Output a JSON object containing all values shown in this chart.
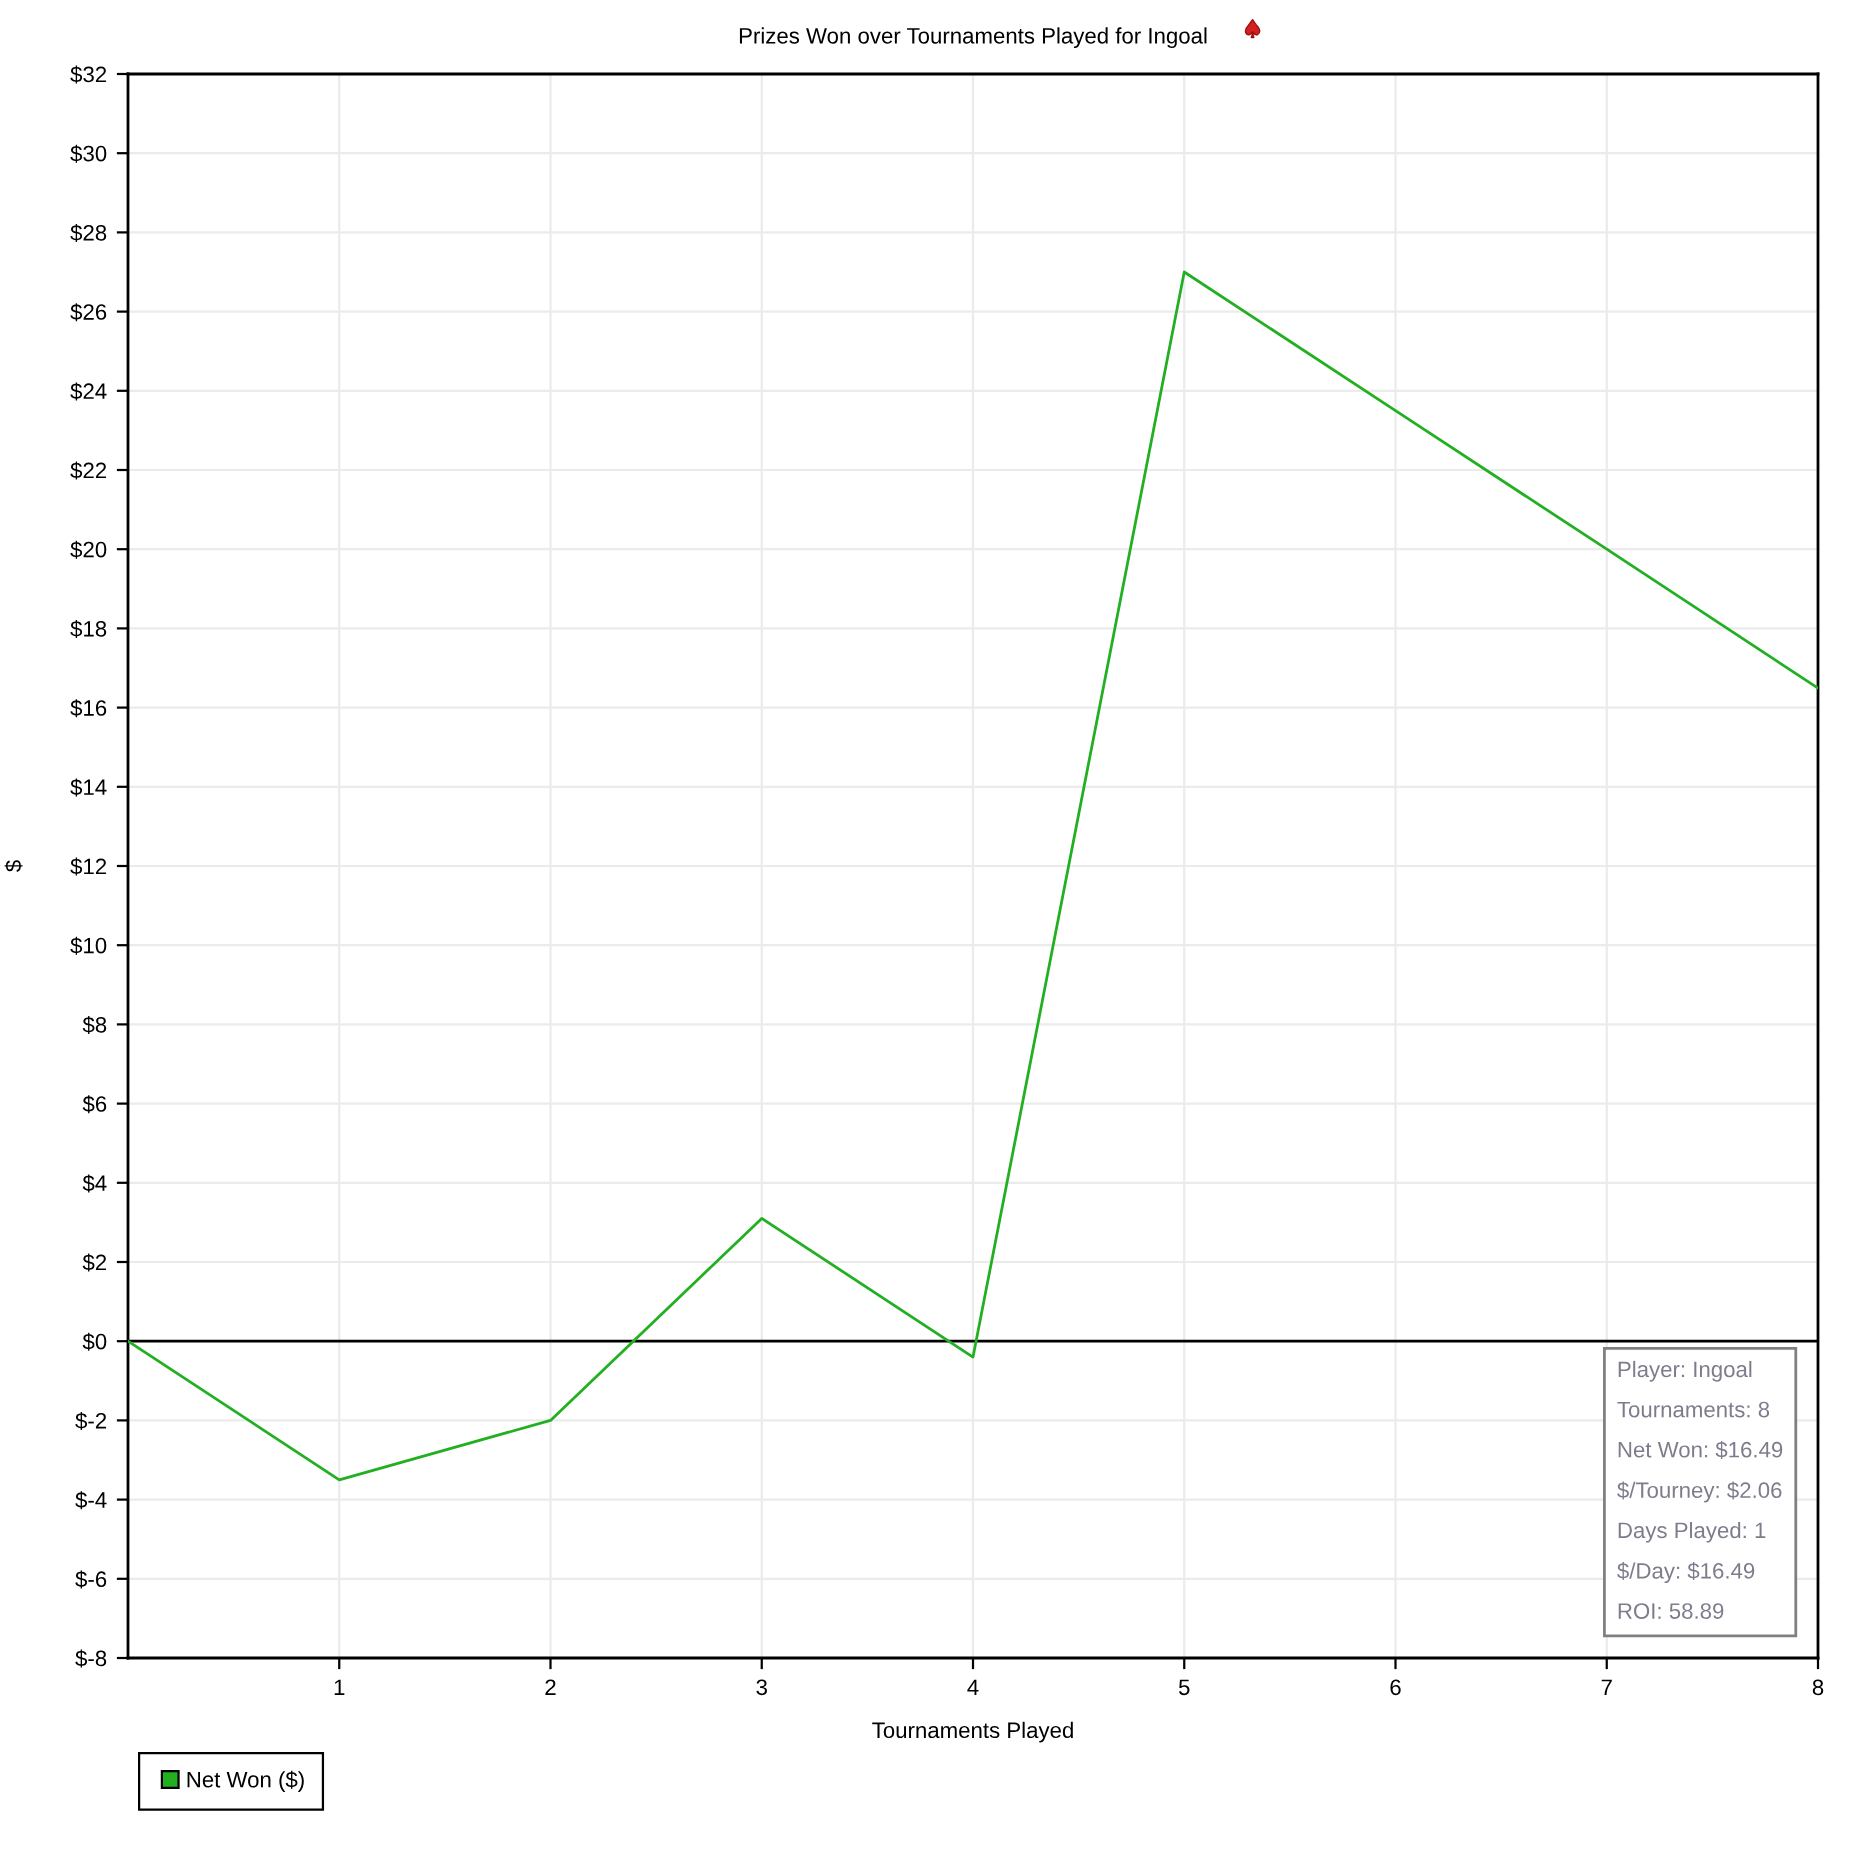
{
  "chart_data": {
    "type": "line",
    "title": "Prizes Won over Tournaments Played for Ingoal",
    "xlabel": "Tournaments Played",
    "ylabel": "$",
    "x": [
      0,
      1,
      2,
      3,
      4,
      5,
      6,
      7,
      8
    ],
    "series": [
      {
        "name": "Net Won ($)",
        "color": "#22b022",
        "values": [
          0,
          -3.5,
          -2.0,
          3.1,
          -0.4,
          27.0,
          23.5,
          20.0,
          16.49
        ]
      }
    ],
    "xlim": [
      0,
      8
    ],
    "xticks": [
      1,
      2,
      3,
      4,
      5,
      6,
      7,
      8
    ],
    "ylim": [
      -8,
      32
    ],
    "yticks": [
      {
        "value": -8,
        "label": "$-8"
      },
      {
        "value": -6,
        "label": "$-6"
      },
      {
        "value": -4,
        "label": "$-4"
      },
      {
        "value": -2,
        "label": "$-2"
      },
      {
        "value": 0,
        "label": "$0"
      },
      {
        "value": 2,
        "label": "$2"
      },
      {
        "value": 4,
        "label": "$4"
      },
      {
        "value": 6,
        "label": "$6"
      },
      {
        "value": 8,
        "label": "$8"
      },
      {
        "value": 10,
        "label": "$10"
      },
      {
        "value": 12,
        "label": "$12"
      },
      {
        "value": 14,
        "label": "$14"
      },
      {
        "value": 16,
        "label": "$16"
      },
      {
        "value": 18,
        "label": "$18"
      },
      {
        "value": 20,
        "label": "$20"
      },
      {
        "value": 22,
        "label": "$22"
      },
      {
        "value": 24,
        "label": "$24"
      },
      {
        "value": 26,
        "label": "$26"
      },
      {
        "value": 28,
        "label": "$28"
      },
      {
        "value": 30,
        "label": "$30"
      },
      {
        "value": 32,
        "label": "$32"
      }
    ],
    "ref_lines": [
      {
        "axis": "y",
        "value": 0,
        "color": "#000000"
      }
    ],
    "grid": true,
    "legend": "bottom left",
    "line_style": "solid",
    "annotations": [
      "Player: Ingoal",
      "Tournaments: 8",
      "Net Won: $16.49",
      "$/Tourney: $2.06",
      "Days Played: 1",
      "$/Day: $16.49",
      "ROI: 58.89"
    ]
  }
}
